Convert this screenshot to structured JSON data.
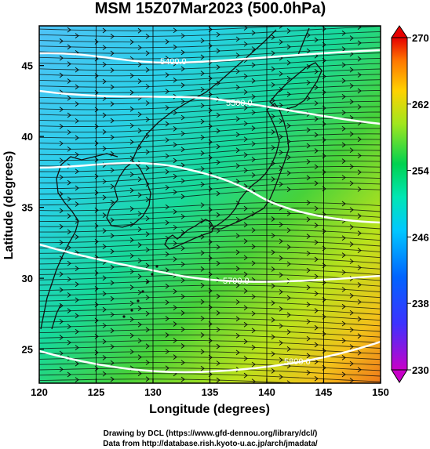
{
  "title": "MSM 15Z07Mar2023 (500.0hPa)",
  "xlabel": "Longitude (degrees)",
  "ylabel": "Latitude  (degrees)",
  "credits": {
    "line1": "Drawing by DCL (https://www.gfd-dennou.org/library/dcl/)",
    "line2": "Data from http://database.rish.kyoto-u.ac.jp/arch/jmadata/"
  },
  "map": {
    "lon_range": [
      120,
      150
    ],
    "lat_range": [
      22.6,
      47.8
    ],
    "lon_ticks": [
      "120",
      "125",
      "130",
      "135",
      "140",
      "145",
      "150"
    ],
    "lat_ticks": [
      "25",
      "30",
      "35",
      "40",
      "45"
    ],
    "contours": [
      {
        "label": "5400.0"
      },
      {
        "label": "5500.0"
      },
      {
        "label": "5700.0"
      },
      {
        "label": "5800.0"
      }
    ]
  },
  "colorbar": {
    "min": 230,
    "max": 270,
    "ticks": [
      "270",
      "262",
      "254",
      "246",
      "238",
      "230"
    ],
    "colors": [
      "#c800c8",
      "#3232ff",
      "#00b4ff",
      "#00e6c8",
      "#00d200",
      "#ffe600",
      "#ff8c00",
      "#e60000"
    ]
  }
}
